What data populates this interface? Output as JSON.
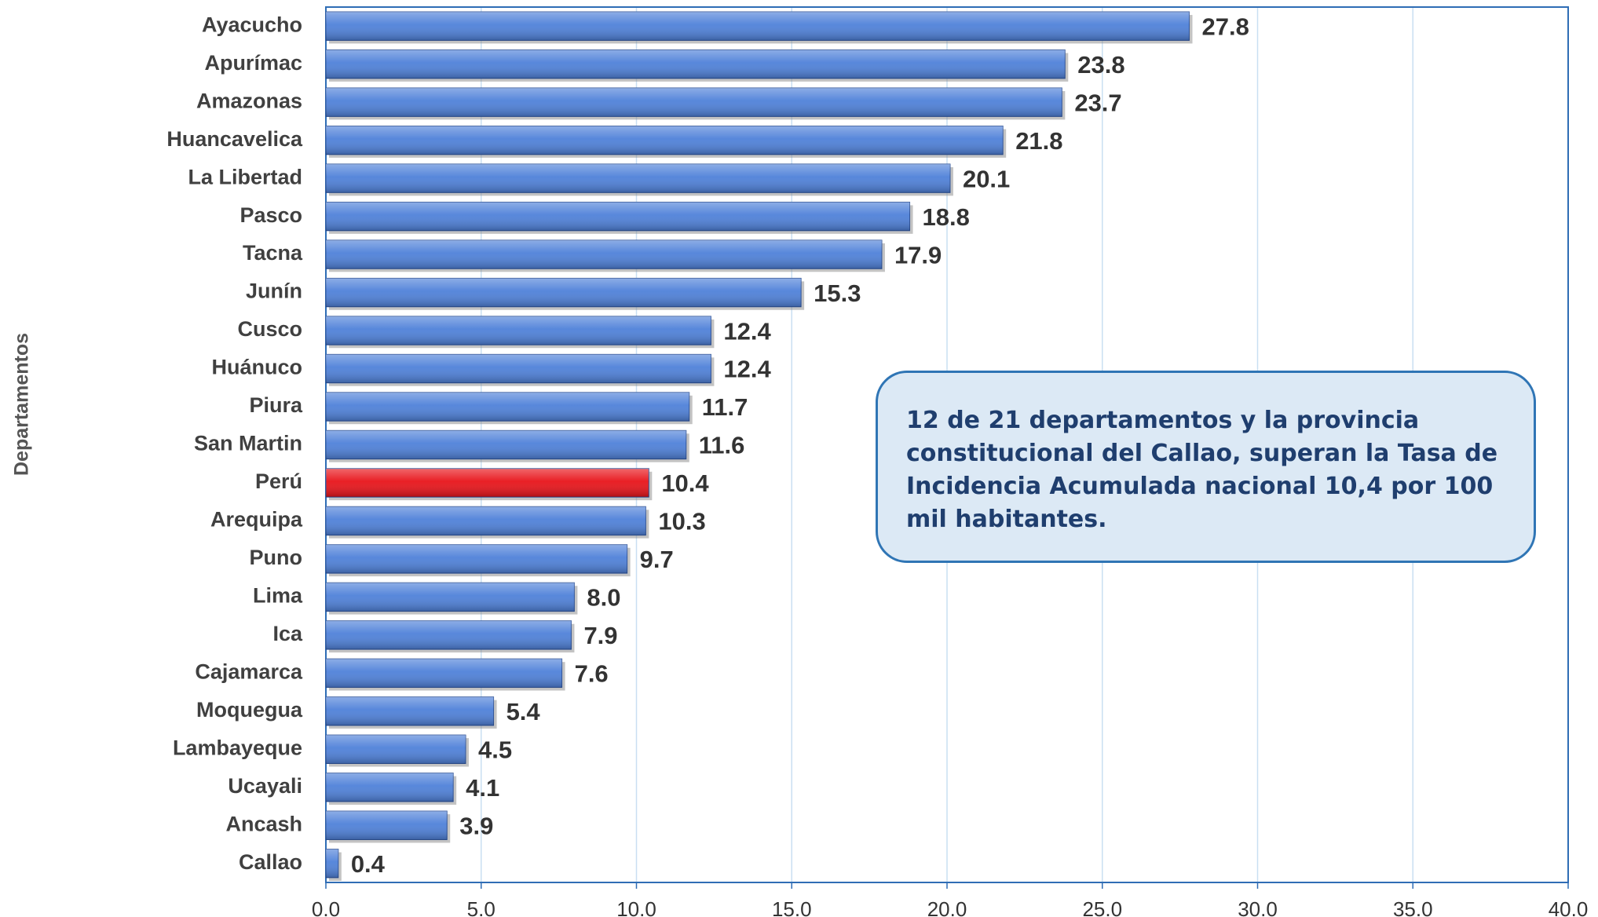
{
  "chart_data": {
    "type": "hbar",
    "y_axis_label": "Departamentos",
    "categories": [
      "Ayacucho",
      "Apurímac",
      "Amazonas",
      "Huancavelica",
      "La Libertad",
      "Pasco",
      "Tacna",
      "Junín",
      "Cusco",
      "Huánuco",
      "Piura",
      "San Martin",
      "Perú",
      "Arequipa",
      "Puno",
      "Lima",
      "Ica",
      "Cajamarca",
      "Moquegua",
      "Lambayeque",
      "Ucayali",
      "Ancash",
      "Callao"
    ],
    "values": [
      27.8,
      23.8,
      23.7,
      21.8,
      20.1,
      18.8,
      17.9,
      15.3,
      12.4,
      12.4,
      11.7,
      11.6,
      10.4,
      10.3,
      9.7,
      8.0,
      7.9,
      7.6,
      5.4,
      4.5,
      4.1,
      3.9,
      0.4
    ],
    "value_labels": [
      "27.8",
      "23.8",
      "23.7",
      "21.8",
      "20.1",
      "18.8",
      "17.9",
      "15.3",
      "12.4",
      "12.4",
      "11.7",
      "11.6",
      "10.4",
      "10.3",
      "9.7",
      "8.0",
      "7.9",
      "7.6",
      "5.4",
      "4.5",
      "4.1",
      "3.9",
      "0.4"
    ],
    "colors": [
      "#4f81d9",
      "#4f81d9",
      "#4f81d9",
      "#4f81d9",
      "#4f81d9",
      "#4f81d9",
      "#4f81d9",
      "#4f81d9",
      "#4f81d9",
      "#4f81d9",
      "#4f81d9",
      "#4f81d9",
      "#e8141a",
      "#4f81d9",
      "#4f81d9",
      "#4f81d9",
      "#4f81d9",
      "#4f81d9",
      "#4f81d9",
      "#4f81d9",
      "#4f81d9",
      "#4f81d9",
      "#4f81d9"
    ],
    "xlim": [
      0,
      40
    ],
    "xticks": [
      {
        "value": 0,
        "label": "0.0"
      },
      {
        "value": 5,
        "label": "5.0"
      },
      {
        "value": 10,
        "label": "10.0"
      },
      {
        "value": 15,
        "label": "15.0"
      },
      {
        "value": 20,
        "label": "20.0"
      },
      {
        "value": 25,
        "label": "25.0"
      },
      {
        "value": 30,
        "label": "30.0"
      },
      {
        "value": 35,
        "label": "35.0"
      },
      {
        "value": 40,
        "label": "40.0"
      }
    ],
    "grid": true,
    "annotation": "12 de 21 departamentos y la provincia constitucional del Callao, superan la Tasa de Incidencia Acumulada nacional 10,4 por 100 mil habitantes."
  }
}
